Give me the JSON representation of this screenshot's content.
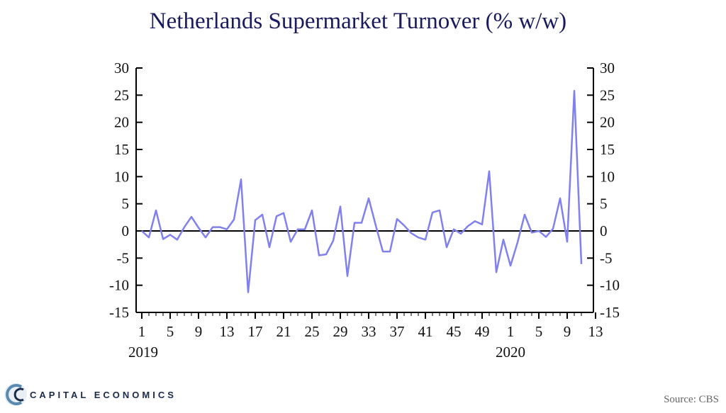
{
  "chart_data": {
    "type": "line",
    "title": "Netherlands Supermarket Turnover (% w/w)",
    "y_ticks": [
      30,
      25,
      20,
      15,
      10,
      5,
      0,
      -5,
      -10,
      -15
    ],
    "ylim": [
      -15,
      30
    ],
    "x_tick_labels": [
      "1",
      "5",
      "9",
      "13",
      "17",
      "21",
      "25",
      "29",
      "33",
      "37",
      "41",
      "45",
      "49",
      "1",
      "5",
      "9",
      "13"
    ],
    "year_labels": [
      "2019",
      "2020"
    ],
    "series": [
      {
        "color": "#8080ee",
        "values": [
          0.0,
          -1.2,
          3.8,
          -1.5,
          -0.7,
          -1.6,
          0.7,
          2.6,
          0.6,
          -1.2,
          0.7,
          0.7,
          0.3,
          2.1,
          9.5,
          -11.3,
          2.0,
          3.0,
          -3.0,
          2.7,
          3.3,
          -2.0,
          0.3,
          0.3,
          3.8,
          -4.5,
          -4.3,
          -1.8,
          4.5,
          -8.3,
          1.5,
          1.5,
          6.0,
          1.0,
          -3.8,
          -3.8,
          2.2,
          1.0,
          -0.4,
          -1.2,
          -1.6,
          3.4,
          3.8,
          -3.0,
          0.3,
          -0.5,
          0.9,
          1.8,
          1.2,
          11.0,
          -7.6,
          -1.6,
          -6.4,
          -2.1,
          3.0,
          -0.3,
          0.0,
          -1.1,
          0.4,
          6.0,
          -2.0,
          25.8,
          -6.1
        ]
      }
    ]
  },
  "branding": {
    "company": "CAPITAL ECONOMICS",
    "source": "Source: CBS"
  }
}
